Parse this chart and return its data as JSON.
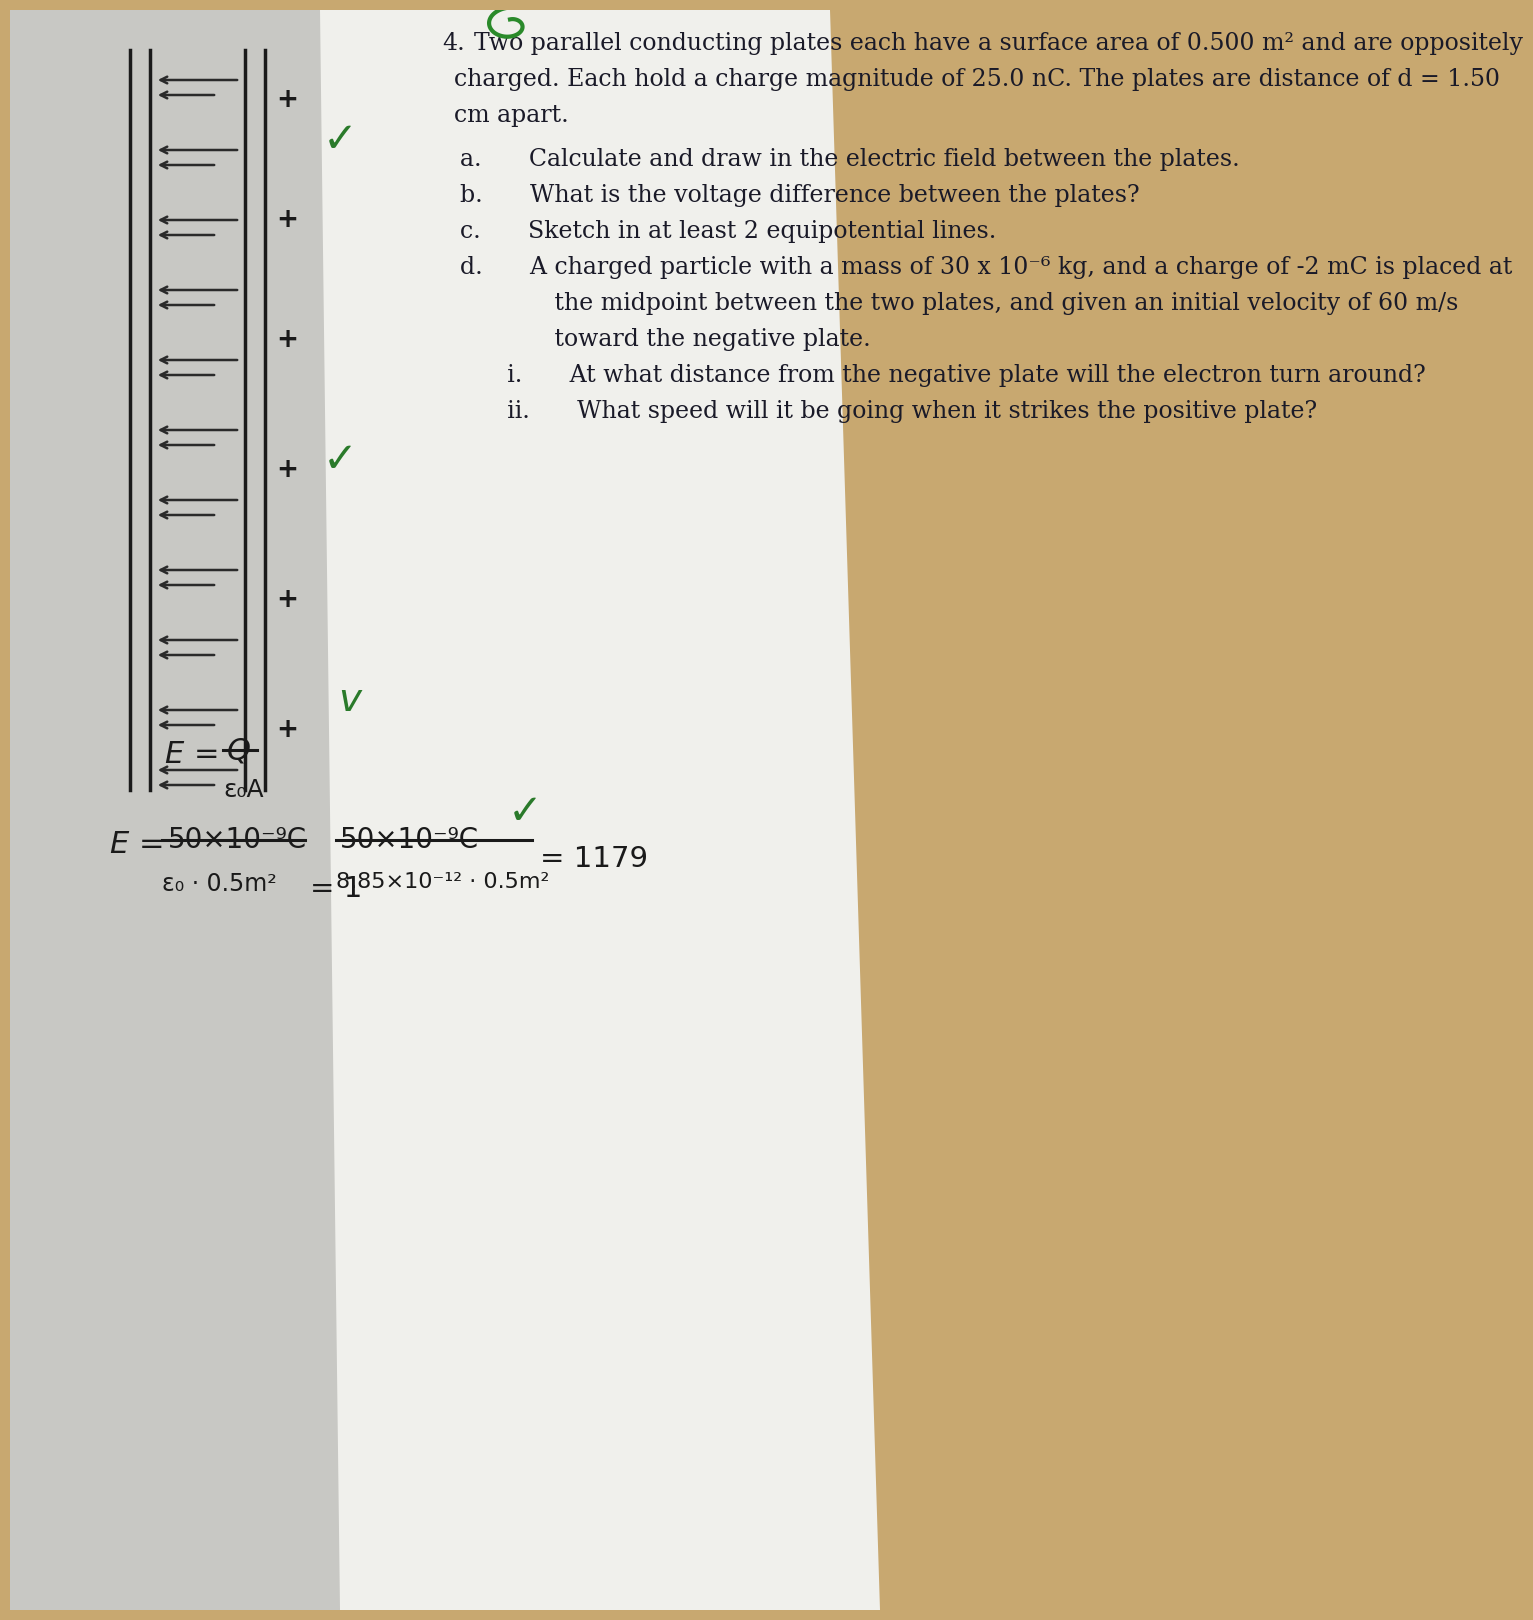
{
  "bg_color": "#c8a870",
  "paper_color": "#f0f0ec",
  "paper_shadow": "#d8d8d4",
  "gray_area_color": "#c8c8c4",
  "arrow_color": "#2a2a2a",
  "font_color": "#1a1a28",
  "hw_color": "#1a1a1a",
  "green_color": "#2a7a2a",
  "plate_color": "#1a1a1a",
  "problem_number": "4.",
  "line1": "Two parallel conducting plates each have a surface area of 0.500 m² and are oppositely",
  "line2": "charged. Each hold a charge magnitude of 25.0 nC. The plates are distance of d = 1.50",
  "line3": "cm apart.",
  "part_a": "a.  Calculate and draw in the electric field between the plates.",
  "part_b": "b.  What is the voltage difference between the plates?",
  "part_c": "c.  Sketch in at least 2 equipotential lines.",
  "part_d": "d.  A charged particle with a mass of 30 x 10⁻⁶ kg, and a charge of -2 mC is placed at",
  "part_d2": "    the midpoint between the two plates, and given an initial velocity of 60 m/s",
  "part_d3": "    toward the negative plate.",
  "part_i": "  i.  At what distance from the negative plate will the electron turn around?",
  "part_ii": "  ii.  What speed will it be going when it strikes the positive plate?"
}
